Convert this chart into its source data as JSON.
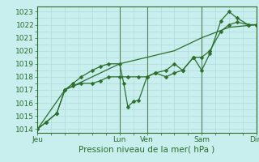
{
  "xlabel": "Pression niveau de la mer( hPa )",
  "background_color": "#c8eeee",
  "grid_color": "#a8d8d8",
  "line_color": "#2d6e2d",
  "spine_color": "#2d6e2d",
  "ylim": [
    1013.7,
    1023.4
  ],
  "xlim": [
    0,
    8.0
  ],
  "xtick_labels": [
    "Jeu",
    "",
    "Lun",
    "Ven",
    "",
    "Sam",
    "",
    "Dim"
  ],
  "xtick_positions": [
    0,
    2,
    3,
    4,
    5,
    6,
    7,
    8
  ],
  "ytick_values": [
    1014,
    1015,
    1016,
    1017,
    1018,
    1019,
    1020,
    1021,
    1022,
    1023
  ],
  "line1_x": [
    0,
    0.3,
    0.7,
    1.0,
    1.3,
    1.6,
    2.0,
    2.3,
    2.6,
    3.0,
    3.3,
    3.7,
    4.0,
    4.3,
    4.7,
    5.0,
    5.3,
    5.7,
    6.0,
    6.3,
    6.7,
    7.0,
    7.3,
    7.7,
    8.0
  ],
  "line1_y": [
    1014.0,
    1014.5,
    1015.2,
    1017.0,
    1017.3,
    1017.5,
    1017.5,
    1017.7,
    1018.0,
    1018.0,
    1018.0,
    1018.0,
    1018.0,
    1018.3,
    1018.0,
    1018.3,
    1018.5,
    1019.5,
    1019.5,
    1020.0,
    1021.5,
    1022.0,
    1022.2,
    1022.0,
    1022.0
  ],
  "line2_x": [
    0,
    0.3,
    0.7,
    1.0,
    1.3,
    1.6,
    2.0,
    2.3,
    2.6,
    3.0,
    3.15,
    3.3,
    3.5,
    3.7,
    4.0,
    4.3,
    4.7,
    5.0,
    5.3,
    5.7,
    6.0,
    6.3,
    6.7,
    7.0,
    7.3,
    7.7,
    8.0
  ],
  "line2_y": [
    1014.0,
    1014.5,
    1015.2,
    1017.0,
    1017.5,
    1018.0,
    1018.5,
    1018.8,
    1019.0,
    1019.0,
    1017.5,
    1015.7,
    1016.1,
    1016.2,
    1018.0,
    1018.3,
    1018.5,
    1019.0,
    1018.5,
    1019.5,
    1018.5,
    1019.8,
    1022.3,
    1023.0,
    1022.5,
    1022.0,
    1022.0
  ],
  "line3_x": [
    0,
    1.0,
    2.0,
    3.0,
    4.0,
    5.0,
    6.0,
    7.0,
    8.0
  ],
  "line3_y": [
    1014.0,
    1017.0,
    1018.0,
    1019.0,
    1019.5,
    1020.0,
    1021.0,
    1021.8,
    1022.0
  ],
  "marker_size": 2.5,
  "line_width": 0.9,
  "vline_positions": [
    3,
    4,
    6,
    8
  ],
  "vline_color": "#3a6a3a",
  "font_size_label": 7.5,
  "font_size_tick": 6.5
}
